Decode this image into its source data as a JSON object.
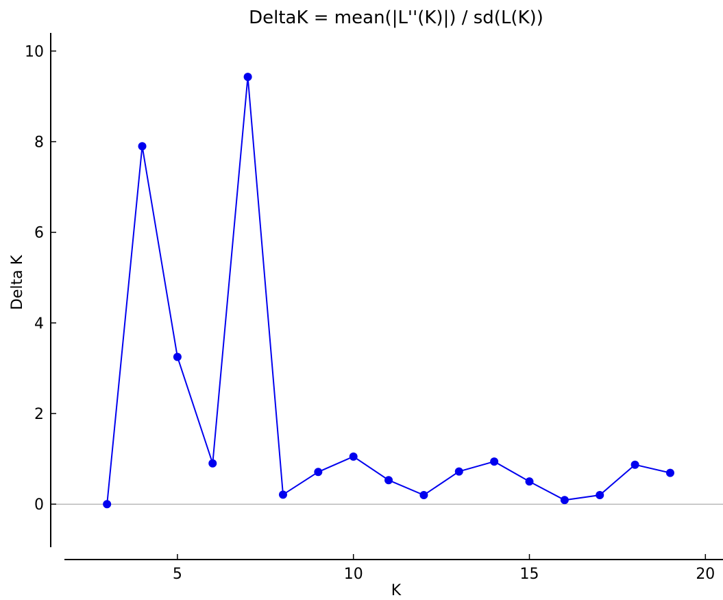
{
  "chart_data": {
    "type": "line",
    "title": "DeltaK = mean(|L''(K)|) / sd(L(K))",
    "xlabel": "K",
    "ylabel": "Delta K",
    "xlim": [
      1.4,
      20.5
    ],
    "ylim": [
      -0.95,
      10.4
    ],
    "x_ticks": [
      5,
      10,
      15,
      20
    ],
    "y_ticks": [
      0,
      2,
      4,
      6,
      8,
      10
    ],
    "grid": false,
    "legend": "none",
    "reference_line_y": 0,
    "series": [
      {
        "color": "#0000ee",
        "x": [
          3,
          4,
          5,
          6,
          7,
          8,
          9,
          10,
          11,
          12,
          13,
          14,
          15,
          16,
          17,
          18,
          19
        ],
        "y": [
          0.0,
          7.9,
          3.25,
          0.9,
          9.43,
          0.21,
          0.71,
          1.05,
          0.53,
          0.2,
          0.72,
          0.94,
          0.5,
          0.09,
          0.2,
          0.87,
          0.69
        ]
      }
    ]
  }
}
